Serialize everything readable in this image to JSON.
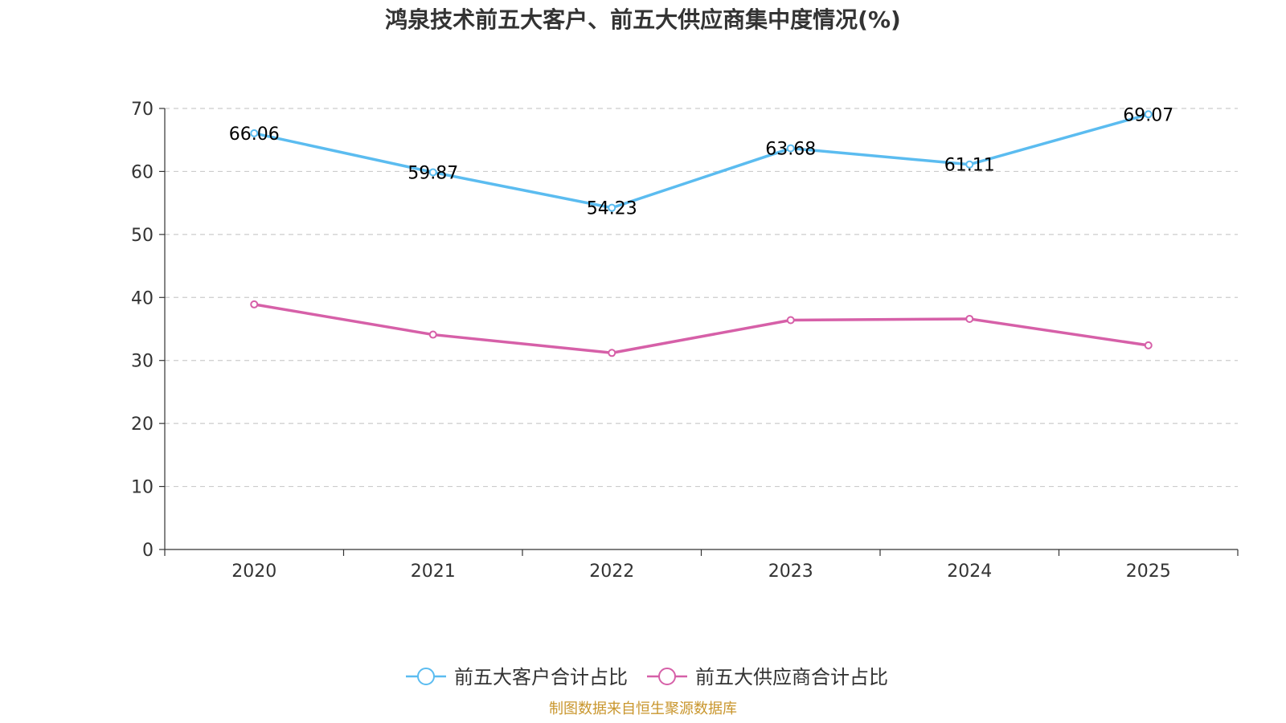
{
  "chart_data": {
    "type": "line",
    "title": "鸿泉技术前五大客户、前五大供应商集中度情况(%)",
    "categories": [
      "2020",
      "2021",
      "2022",
      "2023",
      "2024",
      "2025"
    ],
    "ylim": [
      0,
      70
    ],
    "yticks": [
      0,
      10,
      20,
      30,
      40,
      50,
      60,
      70
    ],
    "grid": true,
    "legend_position": "bottom-center",
    "series": [
      {
        "name": "前五大客户合计占比",
        "color": "#5bbcf0",
        "values": [
          66.06,
          59.87,
          54.23,
          63.68,
          61.11,
          69.07
        ],
        "labels": [
          "66.06",
          "59.87",
          "54.23",
          "63.68",
          "61.11",
          "69.07"
        ],
        "show_labels": true
      },
      {
        "name": "前五大供应商合计占比",
        "color": "#d660a8",
        "values": [
          38.9,
          34.1,
          31.2,
          36.4,
          36.6,
          32.4
        ],
        "show_labels": false
      }
    ]
  },
  "source": "制图数据来自恒生聚源数据库"
}
